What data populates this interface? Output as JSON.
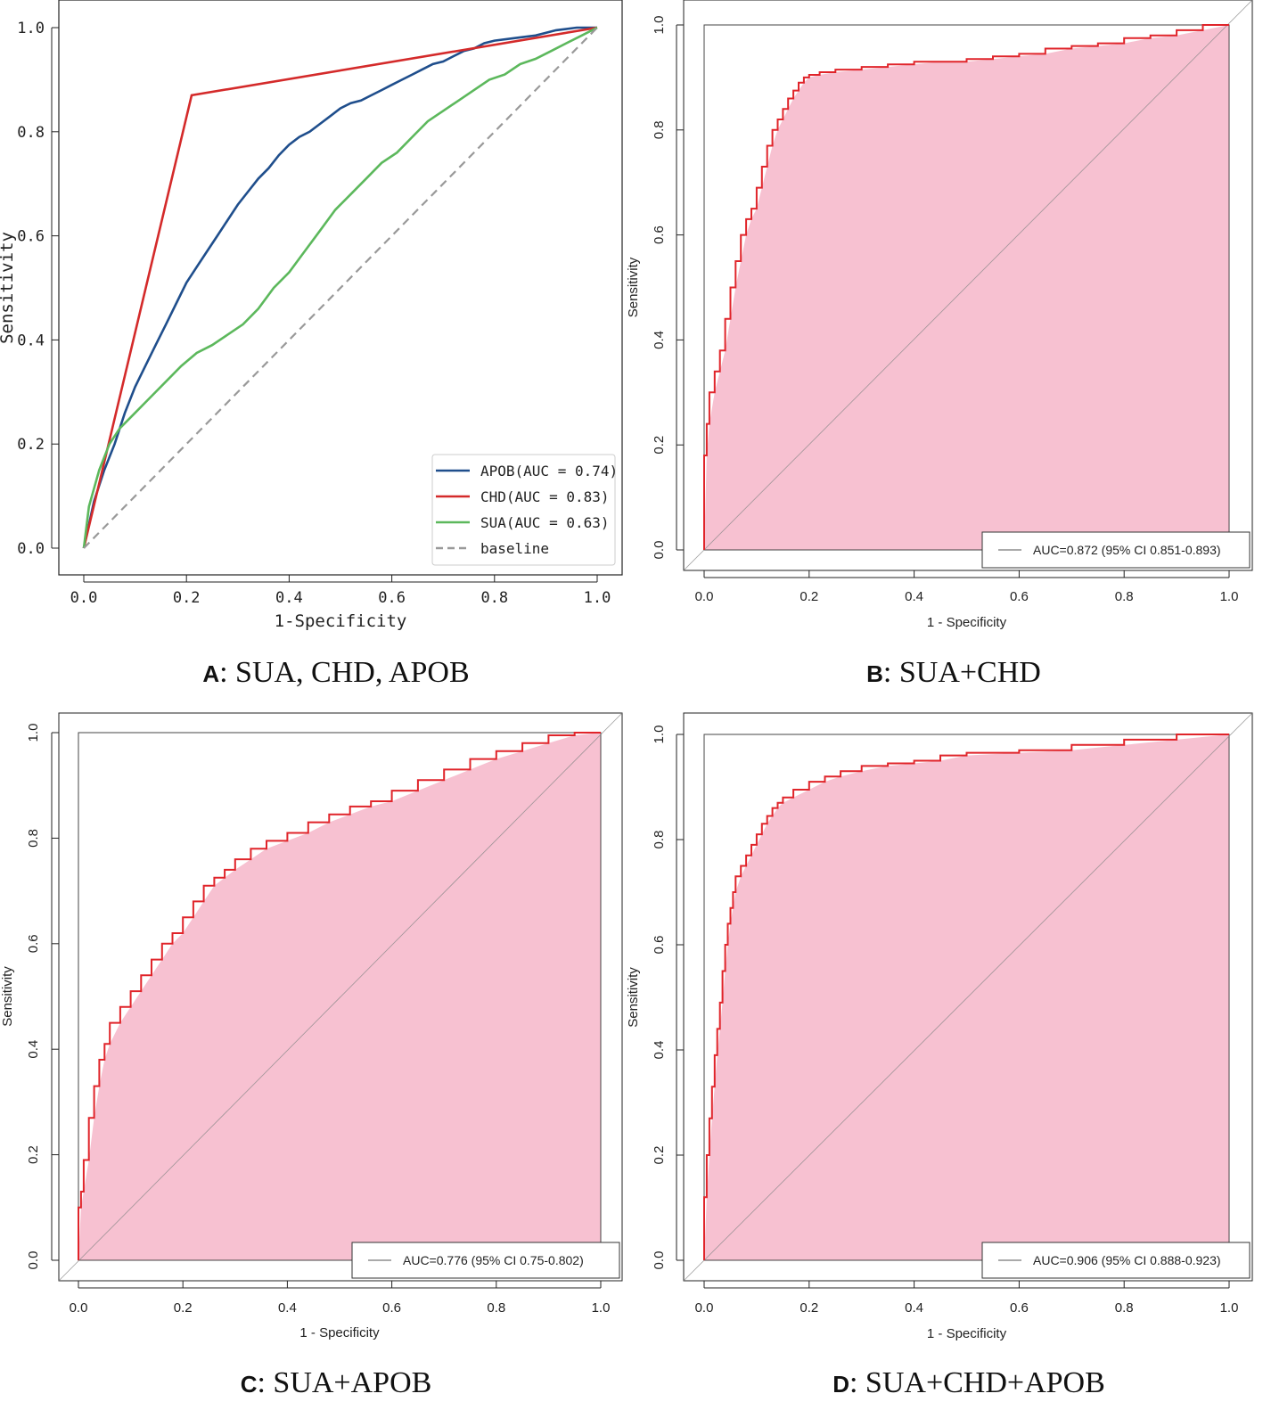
{
  "chart_data": [
    {
      "panel": "A",
      "type": "line",
      "caption_letter": "A",
      "caption_text": ": SUA, CHD, APOB",
      "xlabel": "1-Specificity",
      "ylabel": "Sensitivity",
      "xlim": [
        0,
        1
      ],
      "ylim": [
        0,
        1
      ],
      "xticks": [
        "0.0",
        "0.2",
        "0.4",
        "0.6",
        "0.8",
        "1.0"
      ],
      "yticks": [
        "0.0",
        "0.2",
        "0.4",
        "0.6",
        "0.8",
        "1.0"
      ],
      "legend_position": "bottom-right",
      "series": [
        {
          "name": "APOB(AUC = 0.74)",
          "color": "#1f4e8c",
          "dash": false,
          "x": [
            0,
            0.02,
            0.04,
            0.06,
            0.08,
            0.1,
            0.12,
            0.14,
            0.16,
            0.18,
            0.2,
            0.22,
            0.24,
            0.26,
            0.28,
            0.3,
            0.32,
            0.34,
            0.36,
            0.38,
            0.4,
            0.42,
            0.44,
            0.46,
            0.48,
            0.5,
            0.52,
            0.54,
            0.56,
            0.58,
            0.6,
            0.62,
            0.64,
            0.66,
            0.68,
            0.7,
            0.72,
            0.74,
            0.76,
            0.78,
            0.8,
            0.84,
            0.88,
            0.92,
            0.96,
            1.0
          ],
          "y": [
            0,
            0.09,
            0.15,
            0.2,
            0.26,
            0.31,
            0.35,
            0.39,
            0.43,
            0.47,
            0.51,
            0.54,
            0.57,
            0.6,
            0.63,
            0.66,
            0.685,
            0.71,
            0.73,
            0.755,
            0.775,
            0.79,
            0.8,
            0.815,
            0.83,
            0.845,
            0.855,
            0.86,
            0.87,
            0.88,
            0.89,
            0.9,
            0.91,
            0.92,
            0.93,
            0.935,
            0.945,
            0.955,
            0.96,
            0.97,
            0.975,
            0.98,
            0.985,
            0.995,
            1.0,
            1.0
          ]
        },
        {
          "name": "CHD(AUC = 0.83)",
          "color": "#d42a2a",
          "dash": false,
          "x": [
            0,
            0.21,
            1.0
          ],
          "y": [
            0,
            0.87,
            1.0
          ]
        },
        {
          "name": "SUA(AUC = 0.63)",
          "color": "#5cb85c",
          "dash": false,
          "x": [
            0,
            0.01,
            0.03,
            0.05,
            0.07,
            0.1,
            0.13,
            0.16,
            0.19,
            0.22,
            0.25,
            0.28,
            0.31,
            0.34,
            0.37,
            0.4,
            0.43,
            0.46,
            0.49,
            0.52,
            0.55,
            0.58,
            0.61,
            0.64,
            0.67,
            0.7,
            0.73,
            0.76,
            0.79,
            0.82,
            0.85,
            0.88,
            0.91,
            0.94,
            0.97,
            1.0
          ],
          "y": [
            0,
            0.08,
            0.15,
            0.2,
            0.23,
            0.26,
            0.29,
            0.32,
            0.35,
            0.375,
            0.39,
            0.41,
            0.43,
            0.46,
            0.5,
            0.53,
            0.57,
            0.61,
            0.65,
            0.68,
            0.71,
            0.74,
            0.76,
            0.79,
            0.82,
            0.84,
            0.86,
            0.88,
            0.9,
            0.91,
            0.93,
            0.94,
            0.955,
            0.97,
            0.985,
            1.0
          ]
        },
        {
          "name": "baseline",
          "color": "#999999",
          "dash": true,
          "x": [
            0,
            1
          ],
          "y": [
            0,
            1
          ]
        }
      ]
    },
    {
      "panel": "B",
      "type": "area",
      "caption_letter": "B",
      "caption_text": ": SUA+CHD",
      "xlabel": "1 - Specificity",
      "ylabel": "Sensitivity",
      "xlim": [
        0,
        1
      ],
      "ylim": [
        0,
        1
      ],
      "xticks": [
        "0.0",
        "0.2",
        "0.4",
        "0.6",
        "0.8",
        "1.0"
      ],
      "yticks": [
        "0.0",
        "0.2",
        "0.4",
        "0.6",
        "0.8",
        "1.0"
      ],
      "legend": "AUC=0.872 (95% CI 0.851-0.893)",
      "legend_position": "bottom-right",
      "curve_color": "#e0242a",
      "fill_color": "#f7c1d1",
      "x": [
        0,
        0.005,
        0.01,
        0.02,
        0.03,
        0.04,
        0.05,
        0.06,
        0.07,
        0.08,
        0.09,
        0.1,
        0.11,
        0.12,
        0.13,
        0.14,
        0.15,
        0.16,
        0.17,
        0.18,
        0.19,
        0.2,
        0.22,
        0.25,
        0.3,
        0.35,
        0.4,
        0.45,
        0.5,
        0.55,
        0.6,
        0.65,
        0.7,
        0.75,
        0.8,
        0.85,
        0.9,
        0.95,
        1.0
      ],
      "y": [
        0,
        0.18,
        0.24,
        0.3,
        0.34,
        0.38,
        0.44,
        0.5,
        0.55,
        0.6,
        0.63,
        0.65,
        0.69,
        0.73,
        0.77,
        0.8,
        0.82,
        0.84,
        0.86,
        0.875,
        0.89,
        0.9,
        0.905,
        0.91,
        0.915,
        0.92,
        0.925,
        0.93,
        0.93,
        0.935,
        0.94,
        0.945,
        0.955,
        0.96,
        0.965,
        0.975,
        0.98,
        0.99,
        1.0
      ]
    },
    {
      "panel": "C",
      "type": "area",
      "caption_letter": "C",
      "caption_text": ": SUA+APOB",
      "xlabel": "1 - Specificity",
      "ylabel": "Sensitivity",
      "xlim": [
        0,
        1
      ],
      "ylim": [
        0,
        1
      ],
      "xticks": [
        "0.0",
        "0.2",
        "0.4",
        "0.6",
        "0.8",
        "1.0"
      ],
      "yticks": [
        "0.0",
        "0.2",
        "0.4",
        "0.6",
        "0.8",
        "1.0"
      ],
      "legend": "AUC=0.776 (95% CI 0.75-0.802)",
      "legend_position": "bottom-right",
      "curve_color": "#e0242a",
      "fill_color": "#f7c1d1",
      "x": [
        0,
        0.005,
        0.01,
        0.02,
        0.03,
        0.04,
        0.05,
        0.06,
        0.08,
        0.1,
        0.12,
        0.14,
        0.16,
        0.18,
        0.2,
        0.22,
        0.24,
        0.26,
        0.28,
        0.3,
        0.33,
        0.36,
        0.4,
        0.44,
        0.48,
        0.52,
        0.56,
        0.6,
        0.65,
        0.7,
        0.75,
        0.8,
        0.85,
        0.9,
        0.95,
        1.0
      ],
      "y": [
        0,
        0.1,
        0.13,
        0.19,
        0.27,
        0.33,
        0.38,
        0.41,
        0.45,
        0.48,
        0.51,
        0.54,
        0.57,
        0.6,
        0.62,
        0.65,
        0.68,
        0.71,
        0.725,
        0.74,
        0.76,
        0.78,
        0.795,
        0.81,
        0.83,
        0.845,
        0.86,
        0.87,
        0.89,
        0.91,
        0.93,
        0.95,
        0.965,
        0.98,
        0.995,
        1.0
      ]
    },
    {
      "panel": "D",
      "type": "area",
      "caption_letter": "D",
      "caption_text": ": SUA+CHD+APOB",
      "xlabel": "1 - Specificity",
      "ylabel": "Sensitivity",
      "xlim": [
        0,
        1
      ],
      "ylim": [
        0,
        1
      ],
      "xticks": [
        "0.0",
        "0.2",
        "0.4",
        "0.6",
        "0.8",
        "1.0"
      ],
      "yticks": [
        "0.0",
        "0.2",
        "0.4",
        "0.6",
        "0.8",
        "1.0"
      ],
      "legend": "AUC=0.906 (95% CI 0.888-0.923)",
      "legend_position": "bottom-right",
      "curve_color": "#e0242a",
      "fill_color": "#f7c1d1",
      "x": [
        0,
        0.005,
        0.01,
        0.015,
        0.02,
        0.025,
        0.03,
        0.035,
        0.04,
        0.045,
        0.05,
        0.055,
        0.06,
        0.07,
        0.08,
        0.09,
        0.1,
        0.11,
        0.12,
        0.13,
        0.14,
        0.15,
        0.17,
        0.2,
        0.23,
        0.26,
        0.3,
        0.35,
        0.4,
        0.45,
        0.5,
        0.6,
        0.7,
        0.8,
        0.9,
        1.0
      ],
      "y": [
        0,
        0.12,
        0.2,
        0.27,
        0.33,
        0.39,
        0.44,
        0.49,
        0.55,
        0.6,
        0.64,
        0.67,
        0.7,
        0.73,
        0.75,
        0.77,
        0.79,
        0.81,
        0.83,
        0.845,
        0.86,
        0.87,
        0.88,
        0.895,
        0.91,
        0.92,
        0.93,
        0.94,
        0.945,
        0.95,
        0.96,
        0.965,
        0.97,
        0.98,
        0.99,
        1.0
      ]
    }
  ]
}
